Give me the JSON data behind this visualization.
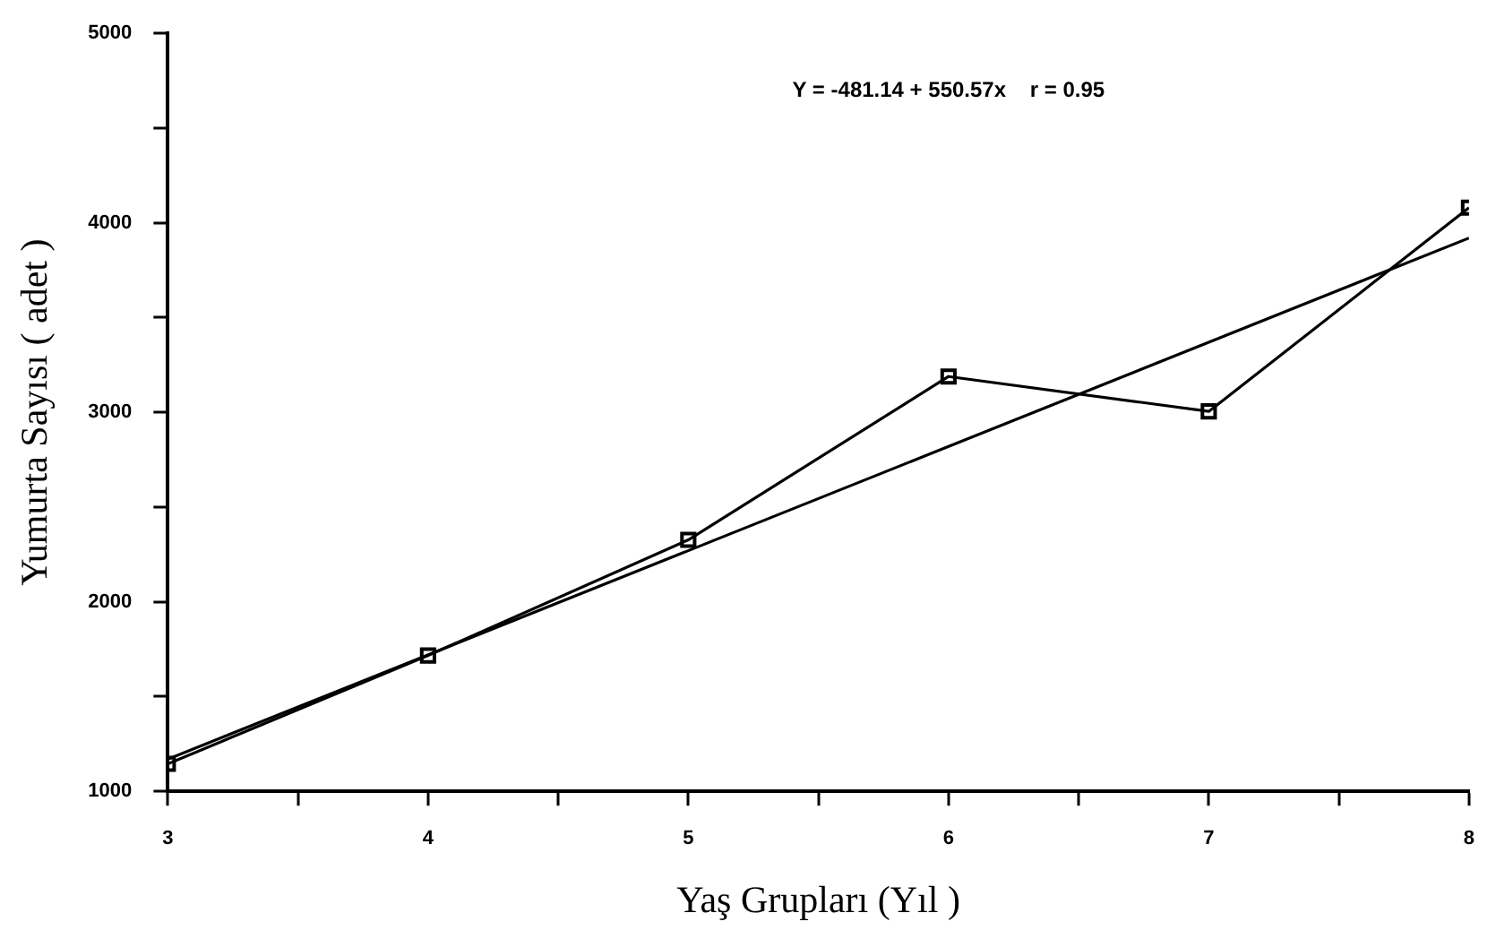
{
  "chart_data": {
    "type": "line",
    "xlabel": "Yaş Grupları (Yıl )",
    "ylabel": "Yumurta Sayısı ( adet )",
    "annotations": [
      "Y = -481.14 + 550.57x    r = 0.95"
    ],
    "x": [
      3,
      4,
      5,
      6,
      7,
      8
    ],
    "series": [
      {
        "color": "#000000",
        "values": [
          1145,
          1717,
          2327,
          3189,
          3005,
          4080
        ],
        "marker": "square"
      },
      {
        "type": "line",
        "color": "#000000",
        "x": [
          3,
          8
        ],
        "values": [
          1170,
          3920
        ],
        "marker": "none"
      }
    ],
    "xlim": [
      3,
      8
    ],
    "ylim": [
      1000,
      5000
    ],
    "xticks": [
      3,
      {
        "value": 3.5,
        "label": null
      },
      4,
      {
        "value": 4.5,
        "label": null
      },
      5,
      {
        "value": 5.5,
        "label": null
      },
      6,
      {
        "value": 6.5,
        "label": null
      },
      7,
      {
        "value": 7.5,
        "label": null
      },
      8
    ],
    "yticks": [
      1000,
      {
        "value": 1500,
        "label": null
      },
      2000,
      {
        "value": 2500,
        "label": null
      },
      3000,
      {
        "value": 3500,
        "label": null
      },
      4000,
      {
        "value": 4500,
        "label": null
      },
      5000
    ],
    "grid": false,
    "legend": false
  }
}
